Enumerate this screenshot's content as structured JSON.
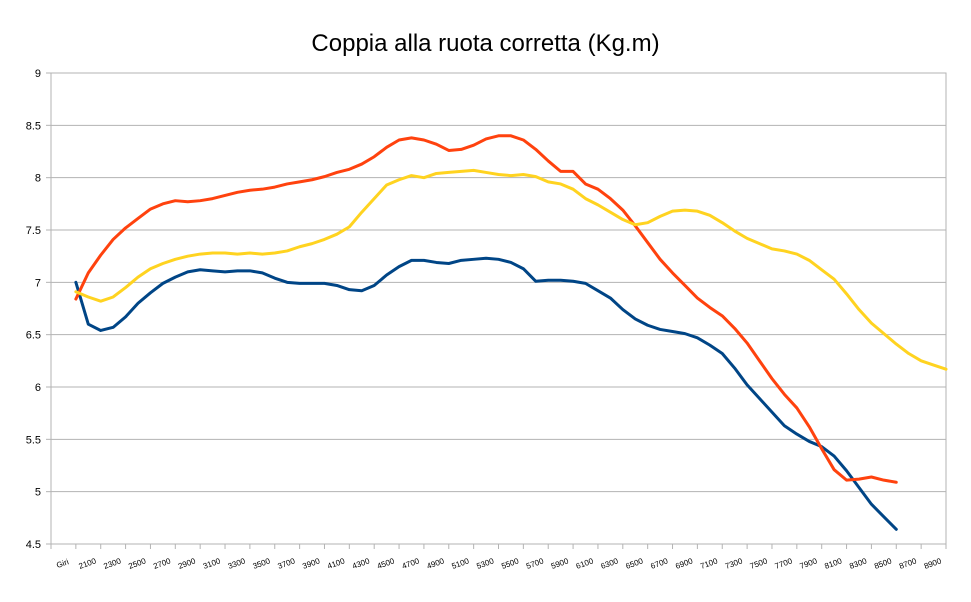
{
  "chart_data": {
    "type": "line",
    "title": "Coppia alla ruota corretta (Kg.m)",
    "xlabel": "",
    "ylabel": "",
    "ylim": [
      4.5,
      9
    ],
    "y_ticks": [
      "4.5",
      "5",
      "5.5",
      "6",
      "6.5",
      "7",
      "7.5",
      "8",
      "8.5",
      "9"
    ],
    "x_ticks": [
      "Giri",
      "2100",
      "2300",
      "2500",
      "2700",
      "2900",
      "3100",
      "3300",
      "3500",
      "3700",
      "3900",
      "4100",
      "4300",
      "4500",
      "4700",
      "4900",
      "5100",
      "5300",
      "5500",
      "5700",
      "5900",
      "6100",
      "6300",
      "6500",
      "6700",
      "6900",
      "7100",
      "7300",
      "7500",
      "7700",
      "7900",
      "8100",
      "8300",
      "8500",
      "8700",
      "8900"
    ],
    "x_start": 1900,
    "x_step": 100,
    "grid": true,
    "legend": "none",
    "series": [
      {
        "color": "#004586",
        "values": [
          7.0,
          6.6,
          6.54,
          6.57,
          6.67,
          6.8,
          6.9,
          6.99,
          7.05,
          7.1,
          7.12,
          7.11,
          7.1,
          7.11,
          7.11,
          7.09,
          7.04,
          7.0,
          6.99,
          6.99,
          6.99,
          6.97,
          6.93,
          6.92,
          6.97,
          7.07,
          7.15,
          7.21,
          7.21,
          7.19,
          7.18,
          7.21,
          7.22,
          7.23,
          7.22,
          7.19,
          7.13,
          7.01,
          7.02,
          7.02,
          7.01,
          6.99,
          6.92,
          6.85,
          6.74,
          6.65,
          6.59,
          6.55,
          6.53,
          6.51,
          6.47,
          6.4,
          6.32,
          6.18,
          6.02,
          5.89,
          5.76,
          5.63,
          5.55,
          5.48,
          5.43,
          5.34,
          5.2,
          5.04,
          4.88,
          4.76,
          4.64
        ]
      },
      {
        "color": "#ff420e",
        "values": [
          6.84,
          7.09,
          7.26,
          7.41,
          7.52,
          7.61,
          7.7,
          7.75,
          7.78,
          7.77,
          7.78,
          7.8,
          7.83,
          7.86,
          7.88,
          7.89,
          7.91,
          7.94,
          7.96,
          7.98,
          8.01,
          8.05,
          8.08,
          8.13,
          8.2,
          8.29,
          8.36,
          8.38,
          8.36,
          8.32,
          8.26,
          8.27,
          8.31,
          8.37,
          8.4,
          8.4,
          8.36,
          8.27,
          8.16,
          8.06,
          8.06,
          7.94,
          7.89,
          7.8,
          7.69,
          7.54,
          7.38,
          7.22,
          7.09,
          6.97,
          6.85,
          6.76,
          6.68,
          6.56,
          6.42,
          6.25,
          6.08,
          5.93,
          5.8,
          5.62,
          5.41,
          5.21,
          5.11,
          5.12,
          5.14,
          5.11,
          5.09
        ]
      },
      {
        "color": "#ffd320",
        "values": [
          6.91,
          6.86,
          6.82,
          6.86,
          6.95,
          7.05,
          7.13,
          7.18,
          7.22,
          7.25,
          7.27,
          7.28,
          7.28,
          7.27,
          7.28,
          7.27,
          7.28,
          7.3,
          7.34,
          7.37,
          7.41,
          7.46,
          7.53,
          7.67,
          7.8,
          7.93,
          7.98,
          8.02,
          8.0,
          8.04,
          8.05,
          8.06,
          8.07,
          8.05,
          8.03,
          8.02,
          8.03,
          8.01,
          7.96,
          7.94,
          7.89,
          7.8,
          7.74,
          7.67,
          7.6,
          7.55,
          7.57,
          7.63,
          7.68,
          7.69,
          7.68,
          7.64,
          7.57,
          7.49,
          7.42,
          7.37,
          7.32,
          7.3,
          7.27,
          7.21,
          7.12,
          7.03,
          6.89,
          6.74,
          6.61,
          6.51,
          6.41,
          6.32,
          6.25,
          6.21,
          6.17
        ]
      }
    ]
  }
}
